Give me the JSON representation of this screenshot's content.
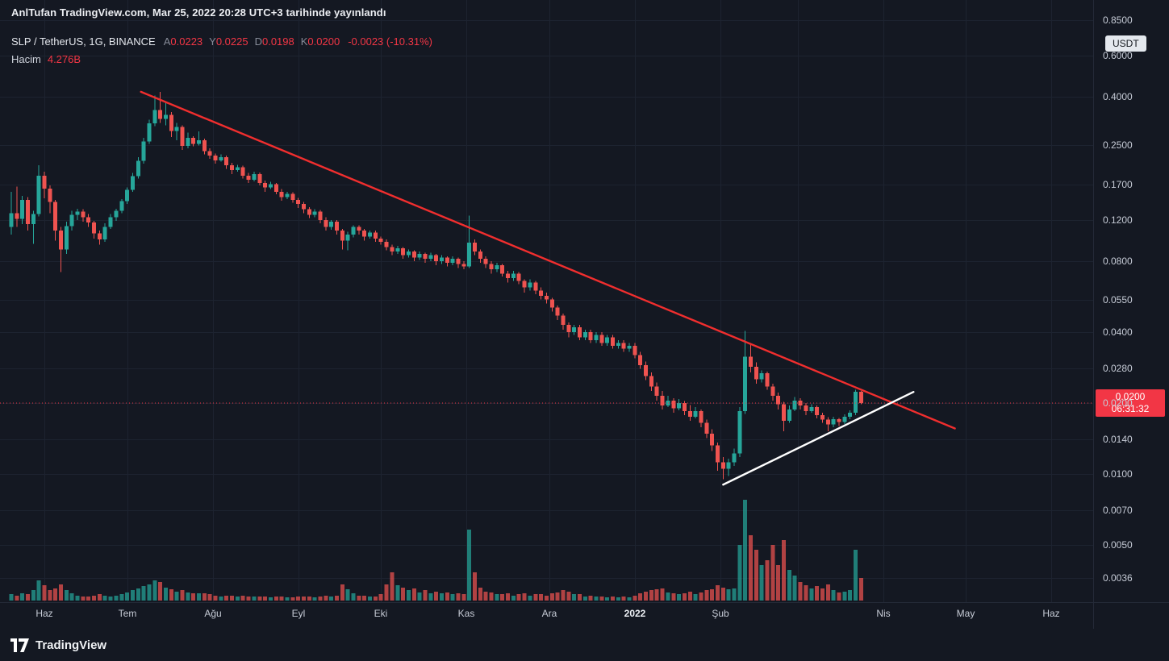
{
  "attribution": {
    "text": "AnlTufan TradingView.com, Mar 25, 2022 20:28 UTC+3 tarihinde yayınlandı"
  },
  "legend": {
    "symbol_title": "SLP / TetherUS, 1G, BINANCE",
    "ohlc": [
      {
        "label": "A",
        "value": "0.0223"
      },
      {
        "label": "Y",
        "value": "0.0225"
      },
      {
        "label": "D",
        "value": "0.0198"
      },
      {
        "label": "K",
        "value": "0.0200"
      }
    ],
    "change": "-0.0023 (-10.31%)",
    "volume_label": "Hacim",
    "volume_value": "4.276B"
  },
  "price_axis": {
    "unit_badge": "USDT",
    "last_price": "0.0200",
    "countdown": "06:31:32",
    "ticks": [
      "0.8500",
      "0.6000",
      "0.4000",
      "0.2500",
      "0.1700",
      "0.1200",
      "0.0800",
      "0.0550",
      "0.0400",
      "0.0280",
      "0.0200",
      "0.0140",
      "0.0100",
      "0.0070",
      "0.0050",
      "0.0036"
    ]
  },
  "time_axis": {
    "ticks": [
      {
        "label": "Haz",
        "day": 4
      },
      {
        "label": "Tem",
        "day": 34
      },
      {
        "label": "Ağu",
        "day": 65
      },
      {
        "label": "Eyl",
        "day": 96
      },
      {
        "label": "Eki",
        "day": 126
      },
      {
        "label": "Kas",
        "day": 157
      },
      {
        "label": "Ara",
        "day": 187
      },
      {
        "label": "2022",
        "day": 218,
        "year": true
      },
      {
        "label": "Şub",
        "day": 249
      },
      {
        "label": "",
        "day": 277
      },
      {
        "label": "Nis",
        "day": 308
      },
      {
        "label": "May",
        "day": 338
      },
      {
        "label": "Haz",
        "day": 369
      }
    ]
  },
  "footer": {
    "brand": "TradingView"
  },
  "colors": {
    "background": "#141822",
    "grid": "#1d2330",
    "text": "#c6cbd6",
    "up": "#26a69a",
    "down": "#ef5350",
    "accent_red": "#f23645",
    "trend_red": "#f02e2e",
    "trend_white": "#ffffff"
  },
  "chart_data": {
    "type": "candlestick",
    "title": "SLP / TetherUS, 1G, BINANCE",
    "price_scale": "log",
    "unit": "USDT",
    "interval": "1 day bars (rendered as 2-day aggregates)",
    "day_reference": "day 4 = 2021-06-01; series spans 2021-05-20 .. 2022-03-25",
    "first_day": -8,
    "days_per_candle": 2,
    "last_price": 0.02,
    "volume_display": "4.276B",
    "ohlcv_note": "[open, high, low, close, relative_volume 0..1]",
    "ohlcv": [
      [
        0.112,
        0.158,
        0.104,
        0.128,
        0.06
      ],
      [
        0.128,
        0.166,
        0.112,
        0.121,
        0.05
      ],
      [
        0.121,
        0.152,
        0.115,
        0.146,
        0.07
      ],
      [
        0.146,
        0.15,
        0.108,
        0.115,
        0.06
      ],
      [
        0.115,
        0.131,
        0.095,
        0.127,
        0.1
      ],
      [
        0.127,
        0.205,
        0.124,
        0.185,
        0.2
      ],
      [
        0.185,
        0.192,
        0.148,
        0.163,
        0.15
      ],
      [
        0.163,
        0.168,
        0.128,
        0.143,
        0.1
      ],
      [
        0.143,
        0.146,
        0.098,
        0.108,
        0.12
      ],
      [
        0.108,
        0.112,
        0.072,
        0.09,
        0.16
      ],
      [
        0.09,
        0.118,
        0.086,
        0.113,
        0.1
      ],
      [
        0.113,
        0.131,
        0.108,
        0.126,
        0.07
      ],
      [
        0.126,
        0.134,
        0.12,
        0.13,
        0.05
      ],
      [
        0.13,
        0.133,
        0.118,
        0.123,
        0.04
      ],
      [
        0.123,
        0.127,
        0.112,
        0.117,
        0.04
      ],
      [
        0.117,
        0.119,
        0.1,
        0.105,
        0.05
      ],
      [
        0.105,
        0.108,
        0.094,
        0.099,
        0.06
      ],
      [
        0.099,
        0.116,
        0.097,
        0.112,
        0.05
      ],
      [
        0.112,
        0.127,
        0.11,
        0.123,
        0.04
      ],
      [
        0.123,
        0.134,
        0.119,
        0.131,
        0.05
      ],
      [
        0.131,
        0.147,
        0.128,
        0.144,
        0.06
      ],
      [
        0.144,
        0.165,
        0.14,
        0.161,
        0.08
      ],
      [
        0.161,
        0.19,
        0.158,
        0.184,
        0.1
      ],
      [
        0.184,
        0.222,
        0.18,
        0.214,
        0.12
      ],
      [
        0.214,
        0.268,
        0.208,
        0.258,
        0.14
      ],
      [
        0.258,
        0.32,
        0.252,
        0.308,
        0.16
      ],
      [
        0.308,
        0.405,
        0.3,
        0.352,
        0.2
      ],
      [
        0.352,
        0.42,
        0.31,
        0.322,
        0.18
      ],
      [
        0.322,
        0.383,
        0.302,
        0.335,
        0.13
      ],
      [
        0.335,
        0.345,
        0.27,
        0.286,
        0.11
      ],
      [
        0.286,
        0.31,
        0.262,
        0.298,
        0.09
      ],
      [
        0.298,
        0.302,
        0.238,
        0.247,
        0.1
      ],
      [
        0.247,
        0.282,
        0.242,
        0.268,
        0.08
      ],
      [
        0.268,
        0.272,
        0.246,
        0.252,
        0.07
      ],
      [
        0.252,
        0.285,
        0.248,
        0.262,
        0.07
      ],
      [
        0.262,
        0.266,
        0.228,
        0.235,
        0.07
      ],
      [
        0.235,
        0.242,
        0.218,
        0.225,
        0.06
      ],
      [
        0.225,
        0.23,
        0.208,
        0.215,
        0.05
      ],
      [
        0.215,
        0.228,
        0.212,
        0.222,
        0.04
      ],
      [
        0.222,
        0.225,
        0.198,
        0.205,
        0.05
      ],
      [
        0.205,
        0.21,
        0.188,
        0.195,
        0.05
      ],
      [
        0.195,
        0.206,
        0.192,
        0.201,
        0.04
      ],
      [
        0.201,
        0.204,
        0.18,
        0.185,
        0.05
      ],
      [
        0.185,
        0.19,
        0.172,
        0.178,
        0.04
      ],
      [
        0.178,
        0.192,
        0.175,
        0.188,
        0.04
      ],
      [
        0.188,
        0.191,
        0.168,
        0.172,
        0.04
      ],
      [
        0.172,
        0.176,
        0.158,
        0.165,
        0.04
      ],
      [
        0.165,
        0.174,
        0.162,
        0.17,
        0.03
      ],
      [
        0.17,
        0.172,
        0.154,
        0.158,
        0.04
      ],
      [
        0.158,
        0.162,
        0.145,
        0.15,
        0.04
      ],
      [
        0.15,
        0.158,
        0.147,
        0.155,
        0.03
      ],
      [
        0.155,
        0.157,
        0.142,
        0.146,
        0.03
      ],
      [
        0.146,
        0.149,
        0.135,
        0.14,
        0.04
      ],
      [
        0.14,
        0.143,
        0.128,
        0.133,
        0.04
      ],
      [
        0.133,
        0.136,
        0.122,
        0.126,
        0.04
      ],
      [
        0.126,
        0.133,
        0.123,
        0.13,
        0.03
      ],
      [
        0.13,
        0.132,
        0.116,
        0.12,
        0.04
      ],
      [
        0.12,
        0.123,
        0.108,
        0.112,
        0.05
      ],
      [
        0.112,
        0.12,
        0.109,
        0.118,
        0.04
      ],
      [
        0.118,
        0.12,
        0.104,
        0.108,
        0.05
      ],
      [
        0.108,
        0.11,
        0.09,
        0.098,
        0.16
      ],
      [
        0.098,
        0.107,
        0.089,
        0.104,
        0.11
      ],
      [
        0.104,
        0.114,
        0.101,
        0.112,
        0.07
      ],
      [
        0.112,
        0.114,
        0.104,
        0.108,
        0.05
      ],
      [
        0.108,
        0.11,
        0.098,
        0.102,
        0.05
      ],
      [
        0.102,
        0.108,
        0.1,
        0.106,
        0.04
      ],
      [
        0.106,
        0.108,
        0.097,
        0.1,
        0.04
      ],
      [
        0.1,
        0.102,
        0.094,
        0.097,
        0.06
      ],
      [
        0.097,
        0.099,
        0.089,
        0.092,
        0.16
      ],
      [
        0.092,
        0.094,
        0.085,
        0.088,
        0.28
      ],
      [
        0.088,
        0.093,
        0.086,
        0.091,
        0.15
      ],
      [
        0.091,
        0.092,
        0.082,
        0.085,
        0.13
      ],
      [
        0.085,
        0.09,
        0.083,
        0.088,
        0.1
      ],
      [
        0.088,
        0.089,
        0.08,
        0.083,
        0.12
      ],
      [
        0.083,
        0.088,
        0.081,
        0.086,
        0.08
      ],
      [
        0.086,
        0.087,
        0.079,
        0.082,
        0.1
      ],
      [
        0.082,
        0.087,
        0.08,
        0.085,
        0.07
      ],
      [
        0.085,
        0.086,
        0.077,
        0.08,
        0.09
      ],
      [
        0.08,
        0.085,
        0.078,
        0.083,
        0.07
      ],
      [
        0.083,
        0.084,
        0.076,
        0.079,
        0.08
      ],
      [
        0.079,
        0.084,
        0.077,
        0.082,
        0.06
      ],
      [
        0.082,
        0.083,
        0.075,
        0.078,
        0.07
      ],
      [
        0.078,
        0.08,
        0.074,
        0.076,
        0.06
      ],
      [
        0.076,
        0.125,
        0.075,
        0.096,
        0.7
      ],
      [
        0.096,
        0.099,
        0.085,
        0.088,
        0.28
      ],
      [
        0.088,
        0.09,
        0.079,
        0.082,
        0.13
      ],
      [
        0.082,
        0.084,
        0.075,
        0.078,
        0.09
      ],
      [
        0.078,
        0.08,
        0.071,
        0.074,
        0.08
      ],
      [
        0.074,
        0.079,
        0.072,
        0.077,
        0.06
      ],
      [
        0.077,
        0.078,
        0.069,
        0.071,
        0.06
      ],
      [
        0.071,
        0.073,
        0.065,
        0.068,
        0.07
      ],
      [
        0.068,
        0.073,
        0.066,
        0.071,
        0.05
      ],
      [
        0.071,
        0.072,
        0.064,
        0.066,
        0.06
      ],
      [
        0.066,
        0.067,
        0.059,
        0.062,
        0.07
      ],
      [
        0.062,
        0.067,
        0.06,
        0.065,
        0.05
      ],
      [
        0.065,
        0.066,
        0.058,
        0.06,
        0.06
      ],
      [
        0.06,
        0.062,
        0.055,
        0.057,
        0.06
      ],
      [
        0.057,
        0.059,
        0.053,
        0.055,
        0.05
      ],
      [
        0.055,
        0.056,
        0.049,
        0.051,
        0.07
      ],
      [
        0.051,
        0.052,
        0.045,
        0.047,
        0.08
      ],
      [
        0.047,
        0.048,
        0.041,
        0.043,
        0.1
      ],
      [
        0.043,
        0.044,
        0.038,
        0.04,
        0.09
      ],
      [
        0.04,
        0.043,
        0.039,
        0.042,
        0.06
      ],
      [
        0.042,
        0.043,
        0.037,
        0.038,
        0.06
      ],
      [
        0.038,
        0.041,
        0.037,
        0.04,
        0.04
      ],
      [
        0.04,
        0.041,
        0.036,
        0.037,
        0.05
      ],
      [
        0.037,
        0.04,
        0.036,
        0.039,
        0.04
      ],
      [
        0.039,
        0.04,
        0.035,
        0.036,
        0.04
      ],
      [
        0.036,
        0.039,
        0.035,
        0.038,
        0.03
      ],
      [
        0.038,
        0.039,
        0.034,
        0.035,
        0.04
      ],
      [
        0.035,
        0.037,
        0.034,
        0.036,
        0.03
      ],
      [
        0.036,
        0.037,
        0.033,
        0.034,
        0.04
      ],
      [
        0.034,
        0.036,
        0.033,
        0.035,
        0.03
      ],
      [
        0.035,
        0.036,
        0.031,
        0.032,
        0.05
      ],
      [
        0.032,
        0.033,
        0.028,
        0.029,
        0.07
      ],
      [
        0.029,
        0.03,
        0.025,
        0.026,
        0.09
      ],
      [
        0.026,
        0.027,
        0.0225,
        0.0235,
        0.1
      ],
      [
        0.0235,
        0.0245,
        0.0205,
        0.0215,
        0.11
      ],
      [
        0.0215,
        0.0225,
        0.0188,
        0.0195,
        0.12
      ],
      [
        0.0195,
        0.0215,
        0.0192,
        0.0205,
        0.08
      ],
      [
        0.0205,
        0.021,
        0.0182,
        0.019,
        0.07
      ],
      [
        0.019,
        0.0208,
        0.0186,
        0.02,
        0.06
      ],
      [
        0.02,
        0.0204,
        0.0178,
        0.0185,
        0.07
      ],
      [
        0.0185,
        0.0196,
        0.0168,
        0.0175,
        0.09
      ],
      [
        0.0175,
        0.0192,
        0.0172,
        0.0185,
        0.06
      ],
      [
        0.0185,
        0.0188,
        0.0158,
        0.0165,
        0.08
      ],
      [
        0.0165,
        0.017,
        0.0142,
        0.0148,
        0.1
      ],
      [
        0.0148,
        0.0155,
        0.0125,
        0.0132,
        0.11
      ],
      [
        0.0132,
        0.0136,
        0.0103,
        0.0112,
        0.15
      ],
      [
        0.0112,
        0.0118,
        0.0095,
        0.0105,
        0.13
      ],
      [
        0.0105,
        0.0116,
        0.0098,
        0.0112,
        0.11
      ],
      [
        0.0112,
        0.0128,
        0.0108,
        0.0122,
        0.12
      ],
      [
        0.0122,
        0.0192,
        0.0118,
        0.0185,
        0.55
      ],
      [
        0.0185,
        0.0405,
        0.018,
        0.0315,
        1.0
      ],
      [
        0.0315,
        0.036,
        0.027,
        0.0285,
        0.65
      ],
      [
        0.0285,
        0.0298,
        0.0242,
        0.0252,
        0.5
      ],
      [
        0.0252,
        0.0275,
        0.0245,
        0.0268,
        0.35
      ],
      [
        0.0268,
        0.0272,
        0.0228,
        0.0235,
        0.4
      ],
      [
        0.0235,
        0.0242,
        0.0205,
        0.0215,
        0.55
      ],
      [
        0.0215,
        0.0222,
        0.0188,
        0.0198,
        0.35
      ],
      [
        0.0198,
        0.0202,
        0.0152,
        0.0168,
        0.6
      ],
      [
        0.0168,
        0.0195,
        0.0165,
        0.0188,
        0.3
      ],
      [
        0.0188,
        0.0212,
        0.0185,
        0.0205,
        0.25
      ],
      [
        0.0205,
        0.021,
        0.0188,
        0.0195,
        0.18
      ],
      [
        0.0195,
        0.02,
        0.0178,
        0.0185,
        0.15
      ],
      [
        0.0185,
        0.0198,
        0.0182,
        0.0192,
        0.12
      ],
      [
        0.0192,
        0.0195,
        0.0172,
        0.0178,
        0.14
      ],
      [
        0.0178,
        0.0182,
        0.0165,
        0.017,
        0.12
      ],
      [
        0.017,
        0.0174,
        0.0152,
        0.0162,
        0.16
      ],
      [
        0.0162,
        0.0175,
        0.0158,
        0.0171,
        0.1
      ],
      [
        0.0171,
        0.0173,
        0.016,
        0.0166,
        0.08
      ],
      [
        0.0166,
        0.0179,
        0.0163,
        0.0175,
        0.09
      ],
      [
        0.0175,
        0.0186,
        0.0171,
        0.0182,
        0.1
      ],
      [
        0.0182,
        0.0228,
        0.0178,
        0.0223,
        0.5
      ],
      [
        0.0223,
        0.0225,
        0.0198,
        0.02,
        0.22
      ]
    ],
    "trendlines": [
      {
        "name": "descending-resistance",
        "color": "red",
        "from": {
          "day": 39,
          "price": 0.42
        },
        "to": {
          "day": 334,
          "price": 0.0156
        }
      },
      {
        "name": "ascending-support",
        "color": "white",
        "from": {
          "day": 250,
          "price": 0.009
        },
        "to": {
          "day": 319,
          "price": 0.0223
        }
      }
    ]
  }
}
